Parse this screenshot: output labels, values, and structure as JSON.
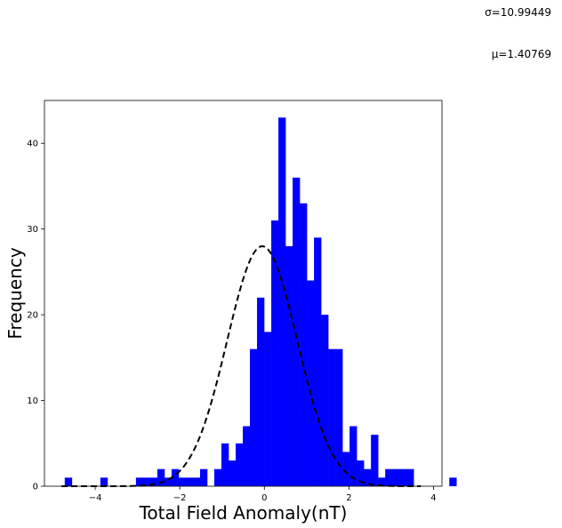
{
  "chart_data": {
    "type": "histogram",
    "xlabel": "Total Field Anomaly(nT)",
    "ylabel": "Frequency",
    "xlim": [
      -5.2,
      4.2
    ],
    "ylim": [
      0,
      45
    ],
    "x_ticks": [
      -4,
      -2,
      0,
      2,
      4
    ],
    "x_tick_labels": [
      "−4",
      "−2",
      "0",
      "2",
      "4"
    ],
    "y_ticks": [
      0,
      10,
      20,
      30,
      40
    ],
    "y_tick_labels": [
      "0",
      "10",
      "20",
      "30",
      "40"
    ],
    "bar_color": "#0000ff",
    "bin_start": -4.72,
    "bin_width": 0.1684,
    "counts": [
      1,
      0,
      0,
      0,
      0,
      1,
      0,
      0,
      0,
      0,
      1,
      1,
      1,
      2,
      1,
      2,
      1,
      1,
      1,
      2,
      0,
      2,
      5,
      3,
      5,
      7,
      16,
      22,
      18,
      31,
      43,
      28,
      36,
      33,
      24,
      29,
      20,
      16,
      16,
      4,
      7,
      3,
      2,
      6,
      1,
      2,
      2,
      2,
      2,
      0,
      0,
      0,
      0,
      0,
      1
    ],
    "fit_curve": {
      "style": "dashed",
      "color": "#000000",
      "peak_x": -0.05,
      "peak_y": 28,
      "sigma": 0.83
    },
    "annotations": [
      {
        "name": "sigma-annotation",
        "text": "σ=10.99449"
      },
      {
        "name": "mu-annotation",
        "text": "μ=1.40769"
      }
    ]
  }
}
